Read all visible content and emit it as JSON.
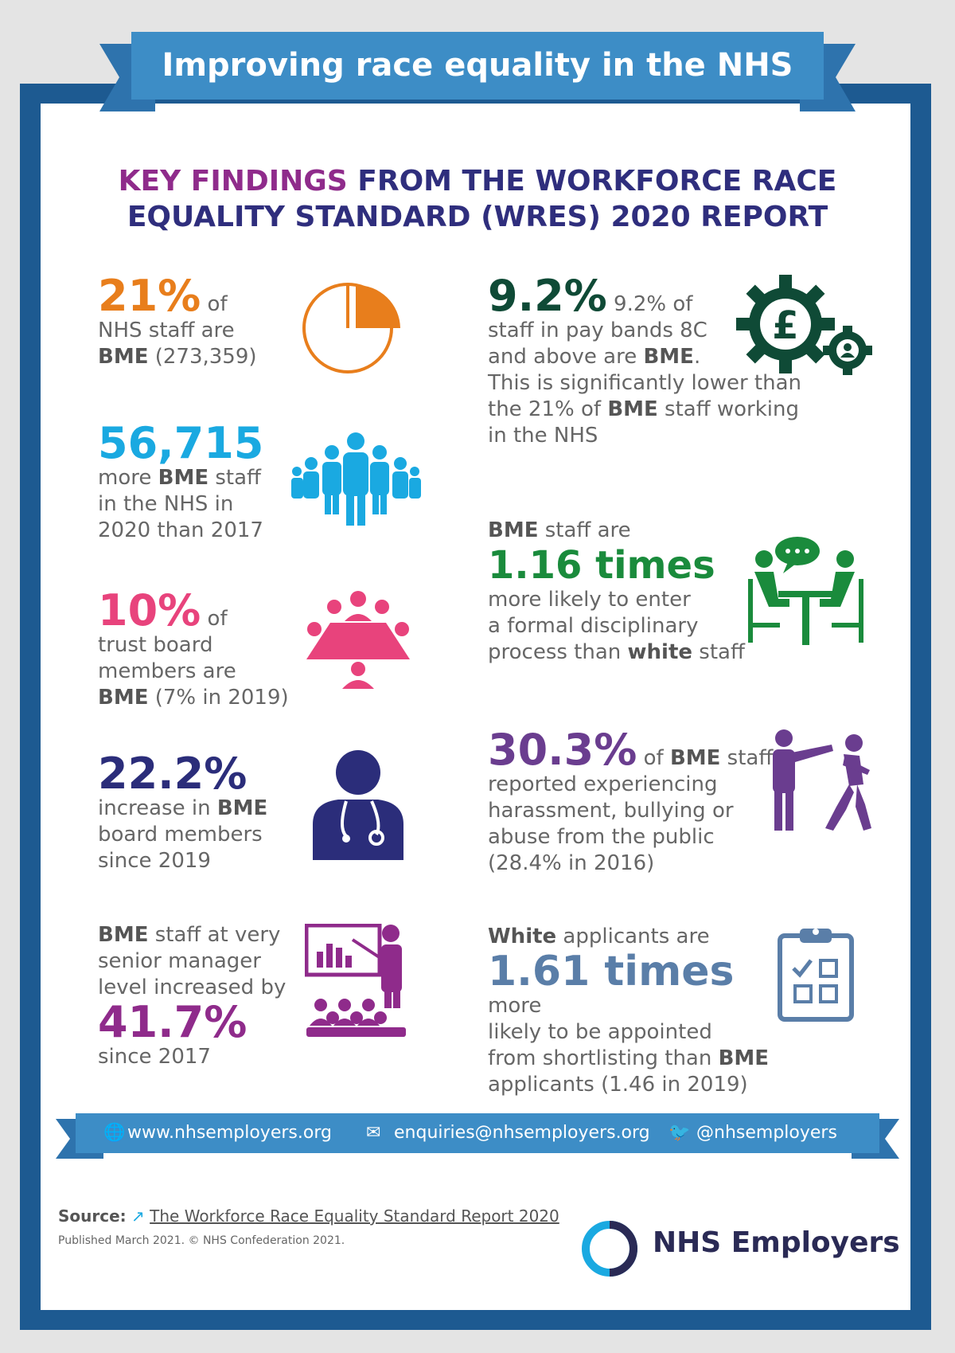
{
  "title": "Improving race equality in the NHS",
  "headline": {
    "highlight": "KEY FINDINGS",
    "line1_rest": " FROM THE WORKFORCE RACE",
    "line2": "EQUALITY STANDARD (WRES) 2020 REPORT"
  },
  "stats": {
    "s1": {
      "value": "21%",
      "of": " of",
      "l1": "NHS staff are",
      "l2b": "BME",
      "l2": " (273,359)"
    },
    "s2": {
      "value": "56,715",
      "l1a": "more ",
      "l1b": "BME",
      "l1c": " staff",
      "l2": "in the NHS in",
      "l3": "2020 than 2017"
    },
    "s3": {
      "value": "10%",
      "of": " of",
      "l1": "trust board",
      "l2": "members are",
      "l3b": "BME",
      "l3": " (7% in 2019)"
    },
    "s4": {
      "value": "22.2%",
      "l1a": "increase in ",
      "l1b": "BME",
      "l2": "board members",
      "l3": "since 2019"
    },
    "s5": {
      "l1b": "BME",
      "l1": " staff at very",
      "l2": "senior manager",
      "l3": "level increased by",
      "value": "41.7%",
      "l4": "since 2017"
    },
    "s6": {
      "value": "9.2%",
      "l0": " 9.2% of",
      "l1": "staff in pay bands 8C",
      "l2a": "and above are ",
      "l2b": "BME",
      "l2c": ".",
      "l3": "This is significantly lower than",
      "l4a": "the 21% of ",
      "l4b": "BME",
      "l4c": " staff working",
      "l5": "in the NHS"
    },
    "s7": {
      "l0b": "BME",
      "l0": " staff are",
      "value": "1.16 times",
      "l1": "more likely to enter",
      "l2": "a formal disciplinary",
      "l3a": "process than ",
      "l3b": "white",
      "l3c": " staff"
    },
    "s8": {
      "value": "30.3%",
      "l0a": " of ",
      "l0b": "BME",
      "l0c": " staff",
      "l1": "reported experiencing",
      "l2": "harassment, bullying or",
      "l3": "abuse from the public",
      "l4": "(28.4% in 2016)"
    },
    "s9": {
      "l0b": "White",
      "l0": " applicants are",
      "value": "1.61 times",
      "v_rest": " more",
      "l1": "likely to be appointed",
      "l2a": "from shortlisting than ",
      "l2b": "BME",
      "l3": "applicants (1.46 in 2019)"
    }
  },
  "footer": {
    "website": "www.nhsemployers.org",
    "email": "enquiries@nhsemployers.org",
    "twitter": "@nhsemployers"
  },
  "source": {
    "label": "Source:",
    "link": "The Workforce Race Equality Standard Report 2020"
  },
  "published": "Published March 2021. © NHS Confederation 2021.",
  "logo": "NHS Employers",
  "colors": {
    "orange": "#e87e1c",
    "cyan": "#1aa9e1",
    "pink": "#e8437c",
    "navy": "#2b2d7a",
    "purple": "#8f2b8b",
    "darkgreen": "#0f4a36",
    "green": "#1a8b3c",
    "violet": "#6a3d8f",
    "slate": "#5a7ea8"
  }
}
